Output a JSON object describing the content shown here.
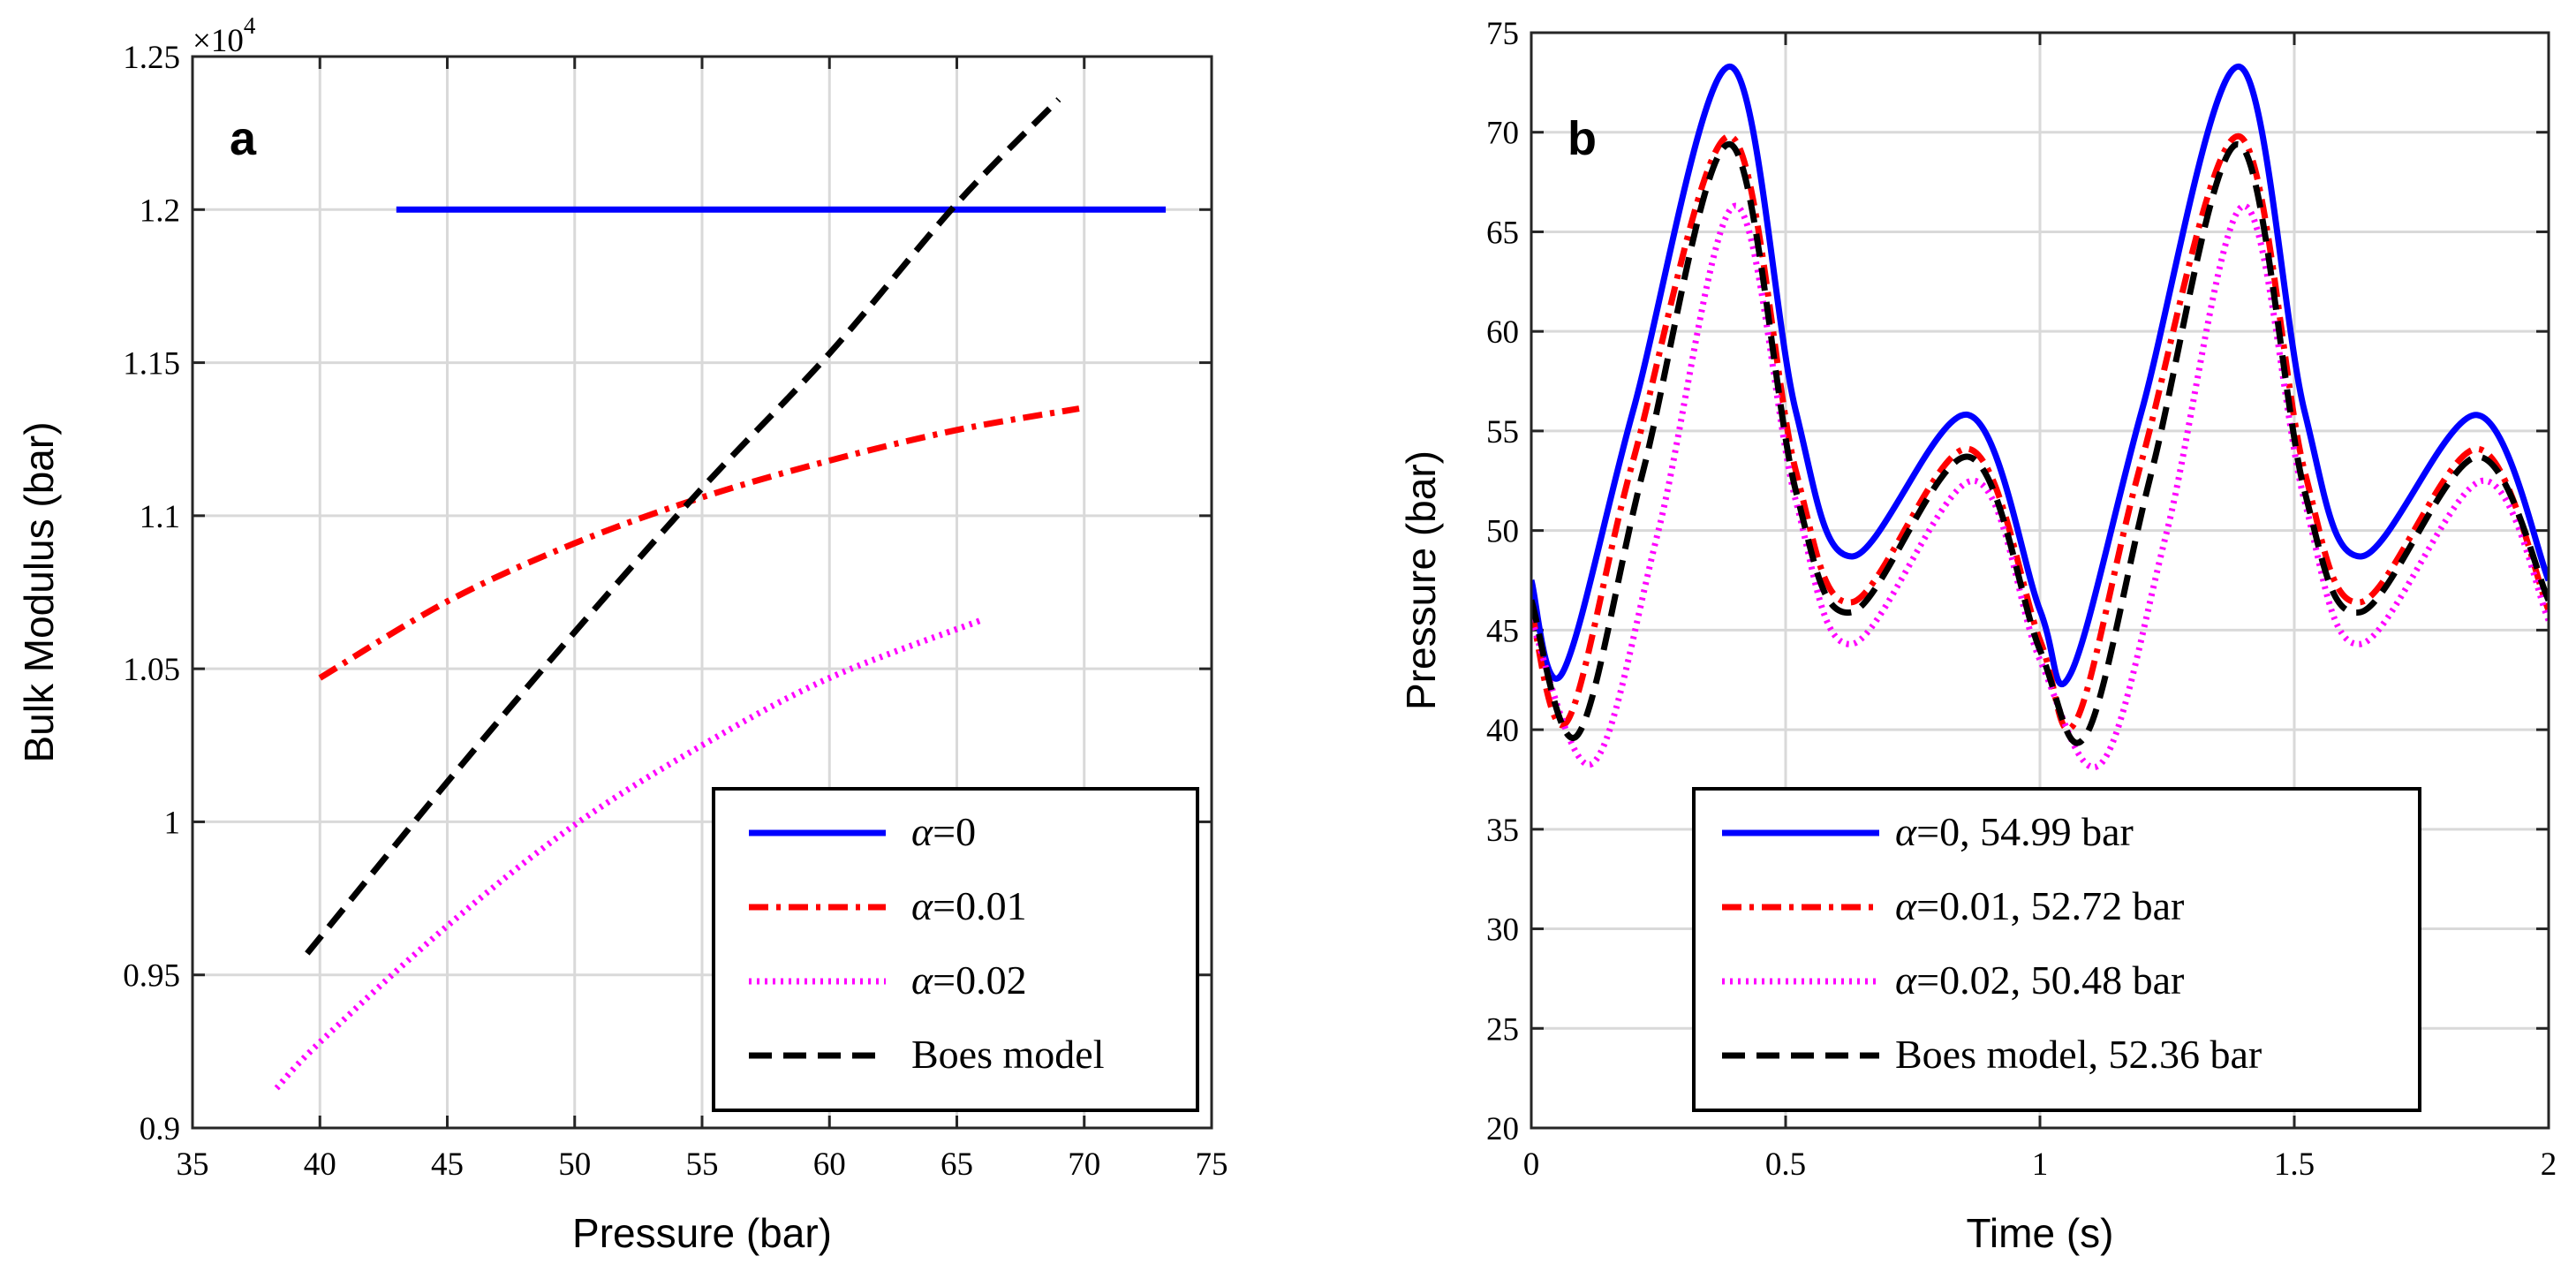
{
  "chart_data": [
    {
      "type": "line",
      "panel_label": "a",
      "xlabel": "Pressure (bar)",
      "ylabel": "Bulk Modulus (bar)",
      "y_exponent_label": {
        "base": "×10",
        "exp": "4"
      },
      "xlim": [
        35,
        75
      ],
      "ylim": [
        0.9,
        1.25
      ],
      "xticks": [
        35,
        40,
        45,
        50,
        55,
        60,
        65,
        70,
        75
      ],
      "xtick_labels": [
        "35",
        "40",
        "45",
        "50",
        "55",
        "60",
        "65",
        "70",
        "75"
      ],
      "yticks": [
        0.9,
        0.95,
        1.0,
        1.05,
        1.1,
        1.15,
        1.2,
        1.25
      ],
      "ytick_labels": [
        "0.9",
        "0.95",
        "1",
        "1.05",
        "1.1",
        "1.15",
        "1.2",
        "1.25"
      ],
      "grid": true,
      "legend_position": "bottom-right",
      "series": [
        {
          "name": "α=0",
          "greek": "α",
          "rest": "=0",
          "color": "#0000FF",
          "dash": "solid",
          "x": [
            43.0,
            73.2
          ],
          "y": [
            1.2,
            1.2
          ]
        },
        {
          "name": "α=0.01",
          "greek": "α",
          "rest": "=0.01",
          "color": "#FF0000",
          "dash": "dashdot",
          "x": [
            40.0,
            45.0,
            50.0,
            55.0,
            60.0,
            65.0,
            69.8
          ],
          "y": [
            1.047,
            1.072,
            1.091,
            1.106,
            1.118,
            1.128,
            1.135
          ]
        },
        {
          "name": "α=0.02",
          "greek": "α",
          "rest": "=0.02",
          "color": "#FF00FF",
          "dash": "dotted",
          "x": [
            38.3,
            40.0,
            45.0,
            50.0,
            55.0,
            60.0,
            66.0
          ],
          "y": [
            0.913,
            0.928,
            0.966,
            0.999,
            1.025,
            1.047,
            1.066
          ]
        },
        {
          "name": "Boes model",
          "greek": "",
          "rest": "Boes model",
          "color": "#000000",
          "dash": "dashed",
          "x": [
            39.5,
            45.0,
            50.0,
            55.0,
            60.0,
            65.0,
            69.0
          ],
          "y": [
            0.957,
            1.013,
            1.062,
            1.109,
            1.153,
            1.202,
            1.236
          ]
        }
      ]
    },
    {
      "type": "line",
      "panel_label": "b",
      "xlabel": "Time (s)",
      "ylabel": "Pressure (bar)",
      "xlim": [
        0,
        2
      ],
      "ylim": [
        20,
        75
      ],
      "xticks": [
        0,
        0.5,
        1,
        1.5,
        2
      ],
      "xtick_labels": [
        "0",
        "0.5",
        "1",
        "1.5",
        "2"
      ],
      "yticks": [
        20,
        25,
        30,
        35,
        40,
        45,
        50,
        55,
        60,
        65,
        70,
        75
      ],
      "ytick_labels": [
        "20",
        "25",
        "30",
        "35",
        "40",
        "45",
        "50",
        "55",
        "60",
        "65",
        "70",
        "75"
      ],
      "grid": true,
      "legend_position": "bottom-center",
      "series": [
        {
          "name": "α=0, 54.99 bar",
          "greek": "α",
          "rest": "=0, 54.99 bar",
          "color": "#0000FF",
          "dash": "solid",
          "x": [
            0,
            0.06,
            0.2,
            0.39,
            0.52,
            0.63,
            0.86,
            1.0,
            1.06,
            1.2,
            1.39,
            1.52,
            1.63,
            1.86,
            2.0
          ],
          "y": [
            47.5,
            42.8,
            56.0,
            73.3,
            56.0,
            48.7,
            55.8,
            46.0,
            42.8,
            56.0,
            73.3,
            56.0,
            48.7,
            55.8,
            47.5
          ]
        },
        {
          "name": "α=0.01, 52.72 bar",
          "greek": "α",
          "rest": "=0.01, 52.72 bar",
          "color": "#FF0000",
          "dash": "dashdot",
          "x": [
            0,
            0.07,
            0.2,
            0.39,
            0.52,
            0.63,
            0.86,
            1.0,
            1.07,
            1.2,
            1.39,
            1.52,
            1.63,
            1.86,
            2.0
          ],
          "y": [
            46.0,
            40.4,
            53.5,
            69.8,
            53.0,
            46.4,
            54.1,
            44.5,
            40.4,
            53.5,
            69.8,
            53.0,
            46.4,
            54.1,
            46.0
          ]
        },
        {
          "name": "α=0.02, 50.48 bar",
          "greek": "α",
          "rest": "=0.02, 50.48 bar",
          "color": "#FF00FF",
          "dash": "dotted",
          "x": [
            0,
            0.12,
            0.25,
            0.4,
            0.52,
            0.63,
            0.87,
            1.0,
            1.12,
            1.25,
            1.4,
            1.52,
            1.63,
            1.87,
            2.0
          ],
          "y": [
            45.5,
            38.3,
            50.0,
            66.3,
            51.5,
            44.3,
            52.5,
            43.5,
            38.3,
            50.0,
            66.3,
            51.5,
            44.3,
            52.5,
            45.5
          ]
        },
        {
          "name": "Boes model, 52.36 bar",
          "greek": "",
          "rest": "Boes model, 52.36 bar",
          "color": "#000000",
          "dash": "dashed",
          "x": [
            0,
            0.09,
            0.22,
            0.39,
            0.52,
            0.63,
            0.86,
            1.0,
            1.09,
            1.22,
            1.39,
            1.52,
            1.63,
            1.86,
            2.0
          ],
          "y": [
            46.5,
            39.7,
            53.0,
            69.4,
            52.0,
            45.9,
            53.7,
            44.0,
            39.7,
            53.0,
            69.4,
            52.0,
            45.9,
            53.7,
            46.5
          ]
        }
      ]
    }
  ]
}
